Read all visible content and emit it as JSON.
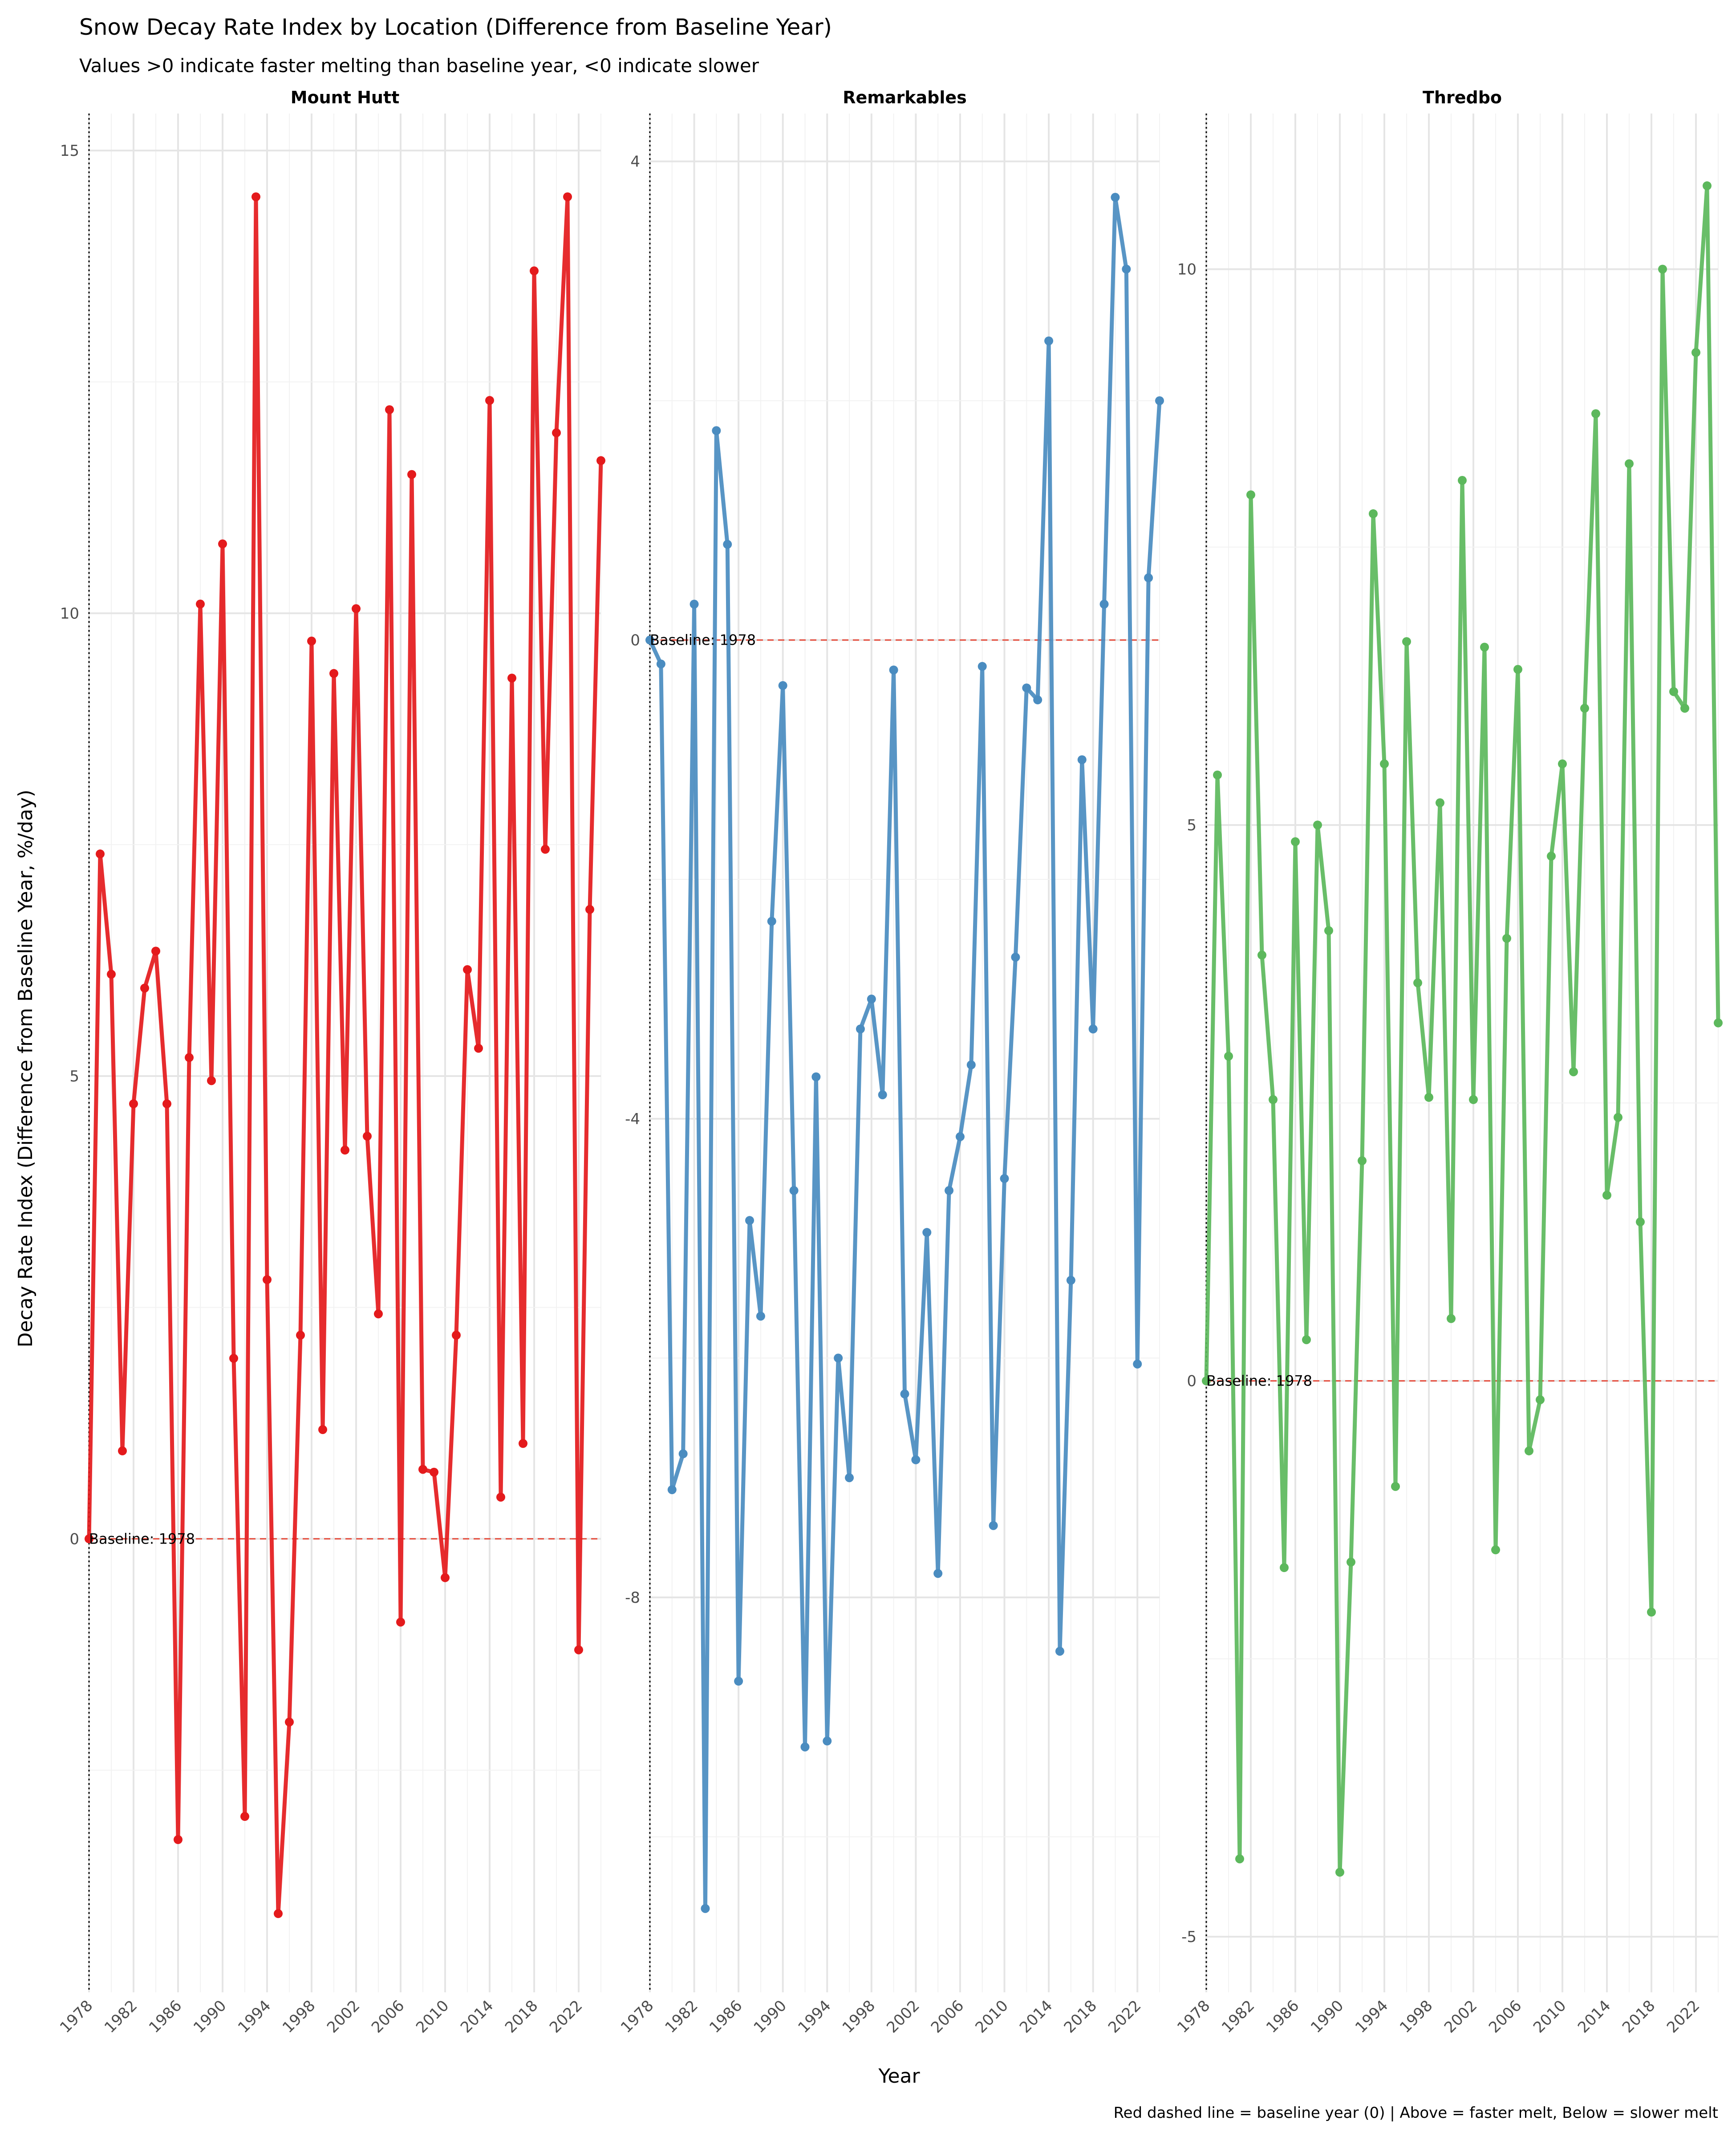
{
  "chart_data": {
    "type": "line",
    "title": "Snow Decay Rate Index by Location (Difference from Baseline Year)",
    "subtitle": "Values >0 indicate faster melting than baseline year, <0 indicate slower",
    "xlabel": "Year",
    "ylabel": "Decay Rate Index (Difference from Baseline Year, %/day)",
    "caption": "Red dashed line = baseline year (0) | Above = faster melt, Below = slower melt",
    "baseline_label": "Baseline: 1978",
    "x_ticks": [
      "1978",
      "1982",
      "1986",
      "1990",
      "1994",
      "1998",
      "2002",
      "2006",
      "2010",
      "2014",
      "2018",
      "2022"
    ],
    "xlim": [
      1978,
      2024
    ],
    "grid": true,
    "legend": "none",
    "panels": [
      {
        "name": "Mount Hutt",
        "color": "#e41a1c",
        "ylim": [
          -4.9,
          15.4
        ],
        "y_ticks": [
          0,
          5,
          10,
          15
        ],
        "x": [
          1978,
          1979,
          1980,
          1981,
          1982,
          1983,
          1984,
          1985,
          1986,
          1987,
          1988,
          1989,
          1990,
          1991,
          1992,
          1993,
          1994,
          1995,
          1996,
          1997,
          1998,
          1999,
          2000,
          2001,
          2002,
          2003,
          2004,
          2005,
          2006,
          2007,
          2008,
          2009,
          2010,
          2011,
          2012,
          2013,
          2014,
          2015,
          2016,
          2017,
          2018,
          2019,
          2020,
          2021,
          2022,
          2023,
          2024
        ],
        "values": [
          0,
          7.4,
          6.1,
          0.95,
          4.7,
          5.95,
          6.35,
          4.7,
          -3.25,
          5.2,
          10.1,
          4.95,
          10.75,
          1.95,
          -3.0,
          14.5,
          2.8,
          -4.05,
          -1.98,
          2.2,
          9.7,
          1.18,
          9.35,
          4.2,
          10.05,
          4.35,
          2.43,
          12.2,
          -0.9,
          11.5,
          0.75,
          0.72,
          -0.42,
          2.2,
          6.15,
          5.3,
          12.3,
          0.45,
          9.3,
          1.03,
          13.7,
          7.45,
          11.95,
          14.5,
          -1.2,
          6.8,
          11.65
        ]
      },
      {
        "name": "Remarkables",
        "color": "#4a8cc0",
        "ylim": [
          -11.3,
          4.4
        ],
        "y_ticks": [
          -8,
          -4,
          0,
          4
        ],
        "x": [
          1978,
          1979,
          1980,
          1981,
          1982,
          1983,
          1984,
          1985,
          1986,
          1987,
          1988,
          1989,
          1990,
          1991,
          1992,
          1993,
          1994,
          1995,
          1996,
          1997,
          1998,
          1999,
          2000,
          2001,
          2002,
          2003,
          2004,
          2005,
          2006,
          2007,
          2008,
          2009,
          2010,
          2011,
          2012,
          2013,
          2014,
          2015,
          2016,
          2017,
          2018,
          2019,
          2020,
          2021,
          2022,
          2023,
          2024
        ],
        "values": [
          0,
          -0.2,
          -7.1,
          -6.8,
          0.3,
          -10.6,
          1.75,
          0.8,
          -8.7,
          -4.85,
          -5.65,
          -2.35,
          -0.38,
          -4.6,
          -9.25,
          -3.65,
          -9.2,
          -6.0,
          -7.0,
          -3.25,
          -3.0,
          -3.8,
          -0.25,
          -6.3,
          -6.85,
          -4.95,
          -7.8,
          -4.6,
          -4.15,
          -3.55,
          -0.22,
          -7.4,
          -4.5,
          -2.65,
          -0.4,
          -0.5,
          2.5,
          -8.45,
          -5.35,
          -1.0,
          -3.25,
          0.3,
          3.7,
          3.1,
          -6.05,
          0.52,
          2.0
        ]
      },
      {
        "name": "Thredbo",
        "color": "#5cb85c",
        "ylim": [
          -5.5,
          11.4
        ],
        "y_ticks": [
          -5,
          0,
          5,
          10
        ],
        "x": [
          1978,
          1979,
          1980,
          1981,
          1982,
          1983,
          1984,
          1985,
          1986,
          1987,
          1988,
          1989,
          1990,
          1991,
          1992,
          1993,
          1994,
          1995,
          1996,
          1997,
          1998,
          1999,
          2000,
          2001,
          2002,
          2003,
          2004,
          2005,
          2006,
          2007,
          2008,
          2009,
          2010,
          2011,
          2012,
          2013,
          2014,
          2015,
          2016,
          2017,
          2018,
          2019,
          2020,
          2021,
          2022,
          2023,
          2024
        ],
        "values": [
          0,
          5.45,
          2.92,
          -4.3,
          7.97,
          3.83,
          2.53,
          -1.68,
          4.85,
          0.37,
          5.0,
          4.05,
          -4.42,
          -1.63,
          1.98,
          7.8,
          5.55,
          -0.95,
          6.65,
          3.58,
          2.55,
          5.2,
          0.56,
          8.1,
          2.53,
          6.6,
          -1.52,
          3.98,
          6.4,
          -0.63,
          -0.17,
          4.72,
          5.55,
          2.78,
          6.05,
          8.7,
          1.67,
          2.37,
          8.25,
          1.43,
          -2.08,
          10.0,
          6.2,
          6.05,
          9.25,
          10.75,
          3.22
        ]
      }
    ]
  }
}
